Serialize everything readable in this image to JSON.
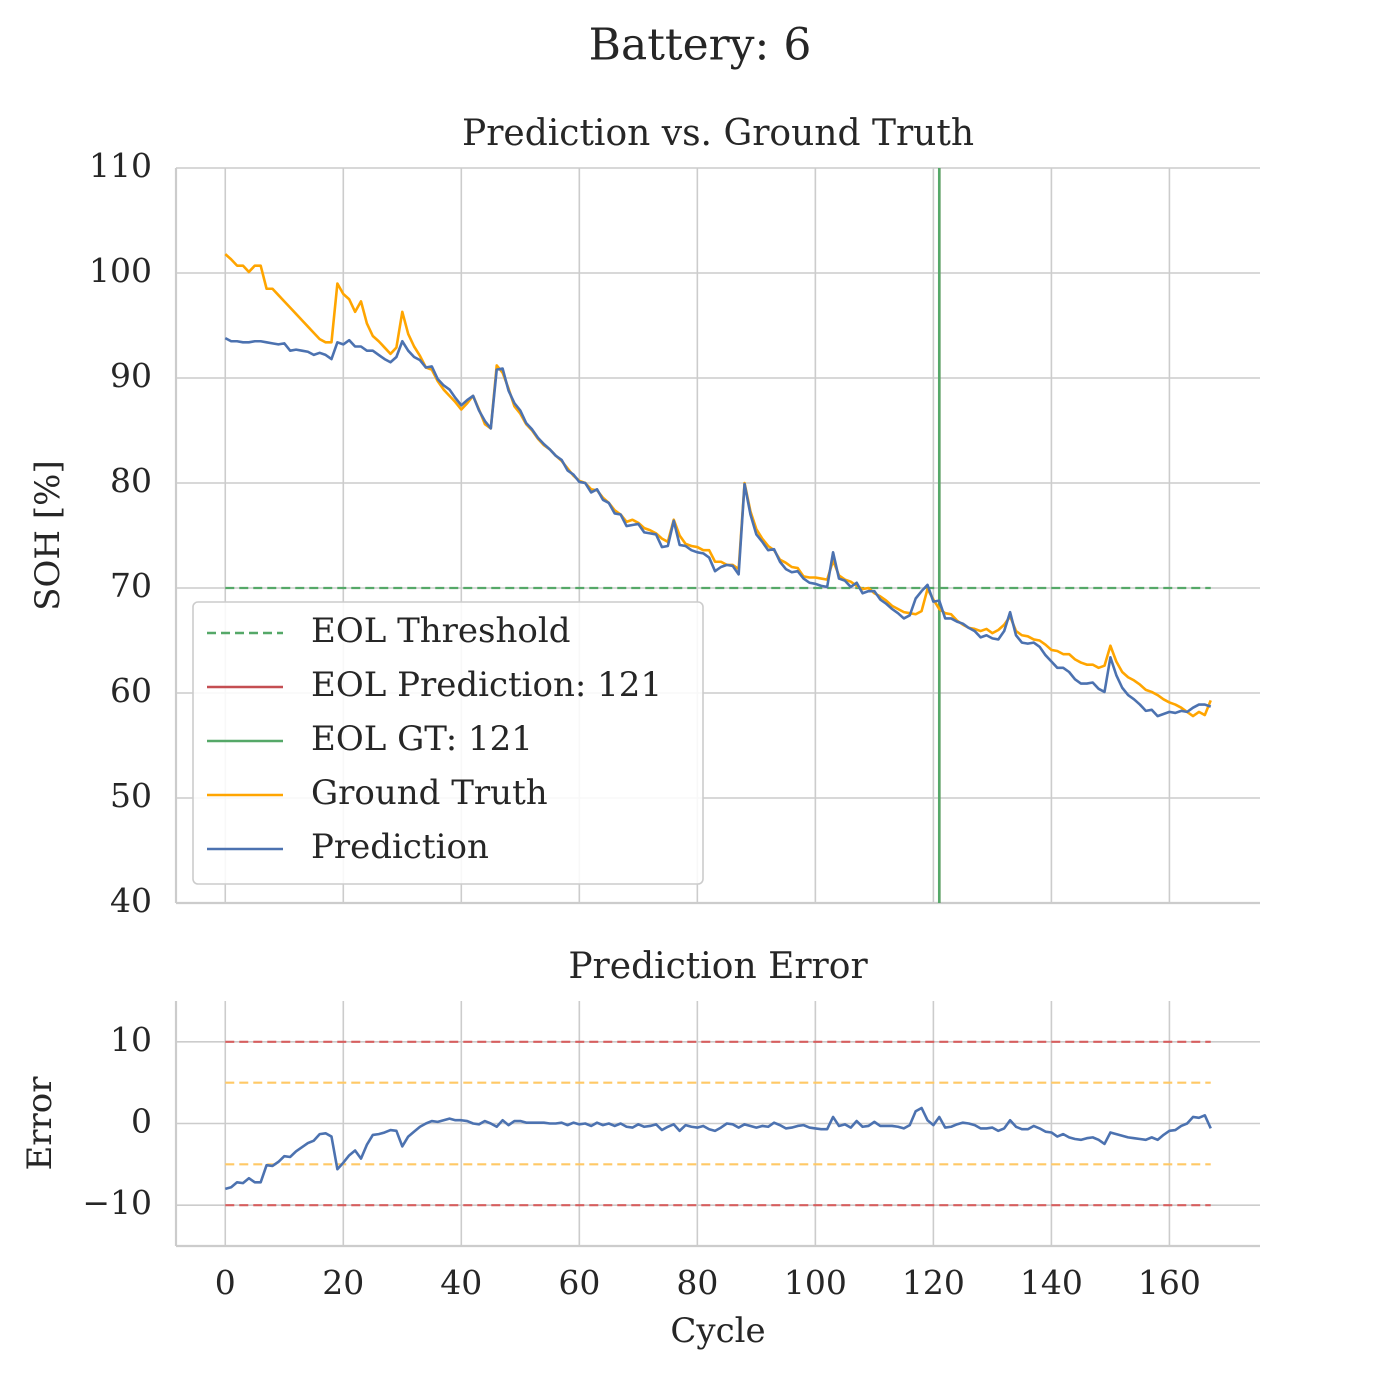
{
  "title": "Battery: 6",
  "chart_data": [
    {
      "type": "line",
      "title": "Prediction vs. Ground Truth",
      "ylabel": "SOH [%]",
      "xlim": [
        -8.35,
        175.35
      ],
      "ylim": [
        40,
        110
      ],
      "xticks": [
        0,
        20,
        40,
        60,
        80,
        100,
        120,
        140,
        160
      ],
      "yticks": [
        40,
        50,
        60,
        70,
        80,
        90,
        100,
        110
      ],
      "grid": true,
      "legend": "lower left",
      "x": [
        0,
        1,
        2,
        3,
        4,
        5,
        6,
        7,
        8,
        9,
        10,
        11,
        12,
        13,
        14,
        15,
        16,
        17,
        18,
        19,
        20,
        21,
        22,
        23,
        24,
        25,
        26,
        27,
        28,
        29,
        30,
        31,
        32,
        33,
        34,
        35,
        36,
        37,
        38,
        39,
        40,
        41,
        42,
        43,
        44,
        45,
        46,
        47,
        48,
        49,
        50,
        51,
        52,
        53,
        54,
        55,
        56,
        57,
        58,
        59,
        60,
        61,
        62,
        63,
        64,
        65,
        66,
        67,
        68,
        69,
        70,
        71,
        72,
        73,
        74,
        75,
        76,
        77,
        78,
        79,
        80,
        81,
        82,
        83,
        84,
        85,
        86,
        87,
        88,
        89,
        90,
        91,
        92,
        93,
        94,
        95,
        96,
        97,
        98,
        99,
        100,
        101,
        102,
        103,
        104,
        105,
        106,
        107,
        108,
        109,
        110,
        111,
        112,
        113,
        114,
        115,
        116,
        117,
        118,
        119,
        120,
        121,
        122,
        123,
        124,
        125,
        126,
        127,
        128,
        129,
        130,
        131,
        132,
        133,
        134,
        135,
        136,
        137,
        138,
        139,
        140,
        141,
        142,
        143,
        144,
        145,
        146,
        147,
        148,
        149,
        150,
        151,
        152,
        153,
        154,
        155,
        156,
        157,
        158,
        159,
        160,
        161,
        162,
        163,
        164,
        165,
        166,
        167
      ],
      "hlines": [
        {
          "name": "EOL Threshold",
          "value": 70,
          "color": "#55a868",
          "style": "dashed"
        }
      ],
      "vlines": [
        {
          "name": "EOL Prediction: 121",
          "value": 121,
          "color": "#c44e52"
        },
        {
          "name": "EOL GT: 121",
          "value": 121,
          "color": "#55a868"
        }
      ],
      "series": [
        {
          "name": "Ground Truth",
          "color": "#ffa500",
          "values": [
            101.8,
            101.3,
            100.7,
            100.7,
            100.1,
            100.7,
            100.7,
            98.5,
            98.5,
            97.9,
            97.3,
            96.7,
            96.1,
            95.5,
            94.9,
            94.3,
            93.7,
            93.4,
            93.4,
            99.0,
            98.0,
            97.5,
            96.3,
            97.3,
            95.2,
            94.0,
            93.5,
            92.9,
            92.3,
            92.9,
            96.3,
            94.2,
            93.0,
            92.1,
            91.0,
            90.8,
            89.7,
            88.9,
            88.3,
            87.7,
            87.0,
            87.6,
            88.3,
            87.0,
            85.6,
            85.2,
            91.2,
            90.5,
            89.0,
            87.3,
            86.6,
            85.6,
            85.0,
            84.2,
            83.6,
            83.2,
            82.6,
            82.1,
            81.4,
            80.7,
            80.2,
            80.0,
            79.4,
            79.3,
            78.6,
            78.1,
            77.4,
            77.0,
            76.3,
            76.5,
            76.2,
            75.7,
            75.5,
            75.2,
            74.7,
            74.4,
            76.5,
            75.0,
            74.2,
            74.0,
            73.9,
            73.6,
            73.6,
            72.5,
            72.5,
            72.2,
            72.2,
            71.8,
            80.0,
            77.3,
            75.6,
            74.7,
            74.0,
            73.6,
            72.7,
            72.4,
            72.0,
            71.9,
            71.1,
            71.0,
            71.0,
            70.9,
            70.8,
            72.6,
            71.2,
            70.8,
            70.6,
            70.2,
            69.9,
            70.0,
            69.5,
            69.2,
            68.8,
            68.3,
            68.0,
            67.7,
            67.6,
            67.5,
            67.8,
            69.9,
            68.9,
            68.0,
            67.6,
            67.5,
            66.9,
            66.5,
            66.2,
            66.1,
            65.9,
            66.1,
            65.7,
            66.0,
            66.5,
            67.3,
            65.9,
            65.5,
            65.4,
            65.1,
            65.0,
            64.6,
            64.1,
            64.0,
            63.7,
            63.7,
            63.2,
            62.9,
            62.7,
            62.7,
            62.4,
            62.6,
            64.5,
            63.0,
            62.0,
            61.5,
            61.2,
            60.8,
            60.3,
            60.1,
            59.8,
            59.4,
            59.1,
            58.9,
            58.6,
            58.2,
            57.8,
            58.2,
            57.9,
            59.3
          ]
        },
        {
          "name": "Prediction",
          "color": "#4c72b0",
          "values": [
            93.8,
            93.5,
            93.5,
            93.4,
            93.4,
            93.5,
            93.5,
            93.4,
            93.3,
            93.2,
            93.3,
            92.6,
            92.7,
            92.6,
            92.5,
            92.2,
            92.4,
            92.2,
            91.8,
            93.4,
            93.2,
            93.6,
            93.0,
            93.0,
            92.6,
            92.6,
            92.2,
            91.8,
            91.5,
            92.0,
            93.5,
            92.6,
            92.0,
            91.7,
            91.0,
            91.1,
            89.9,
            89.3,
            88.9,
            88.1,
            87.4,
            87.9,
            88.3,
            86.9,
            85.9,
            85.2,
            90.8,
            90.9,
            88.8,
            87.6,
            86.9,
            85.7,
            85.1,
            84.3,
            83.7,
            83.2,
            82.6,
            82.2,
            81.2,
            80.8,
            80.1,
            80.0,
            79.1,
            79.4,
            78.4,
            78.1,
            77.1,
            77.0,
            75.9,
            76.0,
            76.1,
            75.3,
            75.2,
            75.1,
            73.9,
            74.0,
            76.4,
            74.1,
            74.0,
            73.6,
            73.4,
            73.3,
            72.9,
            71.6,
            72.0,
            72.2,
            72.1,
            71.3,
            79.9,
            77.0,
            75.1,
            74.4,
            73.6,
            73.7,
            72.5,
            71.8,
            71.5,
            71.6,
            70.9,
            70.5,
            70.4,
            70.2,
            70.1,
            73.4,
            70.9,
            70.7,
            70.1,
            70.5,
            69.5,
            69.7,
            69.7,
            68.9,
            68.5,
            68.0,
            67.6,
            67.1,
            67.4,
            69.0,
            69.7,
            70.3,
            68.7,
            68.8,
            67.1,
            67.1,
            66.8,
            66.6,
            66.2,
            65.9,
            65.3,
            65.5,
            65.2,
            65.1,
            65.9,
            67.7,
            65.5,
            64.8,
            64.7,
            64.8,
            64.4,
            63.6,
            63.0,
            62.4,
            62.4,
            62.0,
            61.3,
            60.9,
            60.9,
            61.0,
            60.4,
            60.1,
            63.4,
            61.7,
            60.5,
            59.8,
            59.4,
            58.9,
            58.3,
            58.4,
            57.8,
            58.0,
            58.2,
            58.1,
            58.3,
            58.2,
            58.6,
            58.9,
            58.9,
            58.7
          ]
        }
      ]
    },
    {
      "type": "line",
      "title": "Prediction Error",
      "xlabel": "Cycle",
      "ylabel": "Error",
      "xlim": [
        -8.35,
        175.35
      ],
      "ylim": [
        -15,
        15
      ],
      "xticks": [
        0,
        20,
        40,
        60,
        80,
        100,
        120,
        140,
        160
      ],
      "yticks": [
        {
          "value": -10,
          "label": "−10"
        },
        0,
        10
      ],
      "grid": true,
      "x": [
        0,
        1,
        2,
        3,
        4,
        5,
        6,
        7,
        8,
        9,
        10,
        11,
        12,
        13,
        14,
        15,
        16,
        17,
        18,
        19,
        20,
        21,
        22,
        23,
        24,
        25,
        26,
        27,
        28,
        29,
        30,
        31,
        32,
        33,
        34,
        35,
        36,
        37,
        38,
        39,
        40,
        41,
        42,
        43,
        44,
        45,
        46,
        47,
        48,
        49,
        50,
        51,
        52,
        53,
        54,
        55,
        56,
        57,
        58,
        59,
        60,
        61,
        62,
        63,
        64,
        65,
        66,
        67,
        68,
        69,
        70,
        71,
        72,
        73,
        74,
        75,
        76,
        77,
        78,
        79,
        80,
        81,
        82,
        83,
        84,
        85,
        86,
        87,
        88,
        89,
        90,
        91,
        92,
        93,
        94,
        95,
        96,
        97,
        98,
        99,
        100,
        101,
        102,
        103,
        104,
        105,
        106,
        107,
        108,
        109,
        110,
        111,
        112,
        113,
        114,
        115,
        116,
        117,
        118,
        119,
        120,
        121,
        122,
        123,
        124,
        125,
        126,
        127,
        128,
        129,
        130,
        131,
        132,
        133,
        134,
        135,
        136,
        137,
        138,
        139,
        140,
        141,
        142,
        143,
        144,
        145,
        146,
        147,
        148,
        149,
        150,
        151,
        152,
        153,
        154,
        155,
        156,
        157,
        158,
        159,
        160,
        161,
        162,
        163,
        164,
        165,
        166,
        167
      ],
      "hlines": [
        {
          "value": 10,
          "color": "#d65f5f",
          "style": "dashed"
        },
        {
          "value": -10,
          "color": "#d65f5f",
          "style": "dashed"
        },
        {
          "value": 5,
          "color": "#ffc966",
          "style": "dashed"
        },
        {
          "value": -5,
          "color": "#ffc966",
          "style": "dashed"
        }
      ],
      "series": [
        {
          "color": "#4c72b0",
          "values": [
            -8.0,
            -7.8,
            -7.2,
            -7.3,
            -6.7,
            -7.2,
            -7.2,
            -5.1,
            -5.2,
            -4.7,
            -4.0,
            -4.1,
            -3.4,
            -2.9,
            -2.4,
            -2.1,
            -1.3,
            -1.2,
            -1.6,
            -5.6,
            -4.8,
            -3.9,
            -3.3,
            -4.3,
            -2.6,
            -1.4,
            -1.3,
            -1.1,
            -0.8,
            -0.9,
            -2.8,
            -1.6,
            -1.0,
            -0.4,
            0.0,
            0.3,
            0.2,
            0.4,
            0.6,
            0.4,
            0.4,
            0.3,
            0.0,
            -0.1,
            0.3,
            0.0,
            -0.4,
            0.4,
            -0.2,
            0.3,
            0.3,
            0.1,
            0.1,
            0.1,
            0.1,
            0.0,
            0.0,
            0.1,
            -0.2,
            0.1,
            -0.1,
            0.0,
            -0.3,
            0.1,
            -0.2,
            0.0,
            -0.3,
            0.0,
            -0.4,
            -0.5,
            -0.1,
            -0.4,
            -0.3,
            -0.1,
            -0.8,
            -0.4,
            -0.1,
            -0.9,
            -0.2,
            -0.4,
            -0.5,
            -0.3,
            -0.7,
            -0.9,
            -0.5,
            0.0,
            -0.1,
            -0.5,
            -0.1,
            -0.3,
            -0.5,
            -0.3,
            -0.4,
            0.1,
            -0.2,
            -0.6,
            -0.5,
            -0.3,
            -0.2,
            -0.5,
            -0.6,
            -0.7,
            -0.7,
            0.8,
            -0.3,
            -0.1,
            -0.5,
            0.3,
            -0.4,
            -0.3,
            0.2,
            -0.3,
            -0.3,
            -0.3,
            -0.4,
            -0.6,
            -0.2,
            1.5,
            1.9,
            0.4,
            -0.2,
            0.8,
            -0.5,
            -0.4,
            -0.1,
            0.1,
            0.0,
            -0.2,
            -0.6,
            -0.6,
            -0.5,
            -0.9,
            -0.6,
            0.4,
            -0.4,
            -0.7,
            -0.7,
            -0.3,
            -0.6,
            -1.0,
            -1.1,
            -1.6,
            -1.3,
            -1.7,
            -1.9,
            -2.0,
            -1.8,
            -1.7,
            -2.0,
            -2.5,
            -1.1,
            -1.3,
            -1.5,
            -1.7,
            -1.8,
            -1.9,
            -2.0,
            -1.7,
            -2.0,
            -1.4,
            -0.9,
            -0.8,
            -0.3,
            0.0,
            0.8,
            0.7,
            1.0,
            -0.6
          ]
        }
      ]
    }
  ]
}
